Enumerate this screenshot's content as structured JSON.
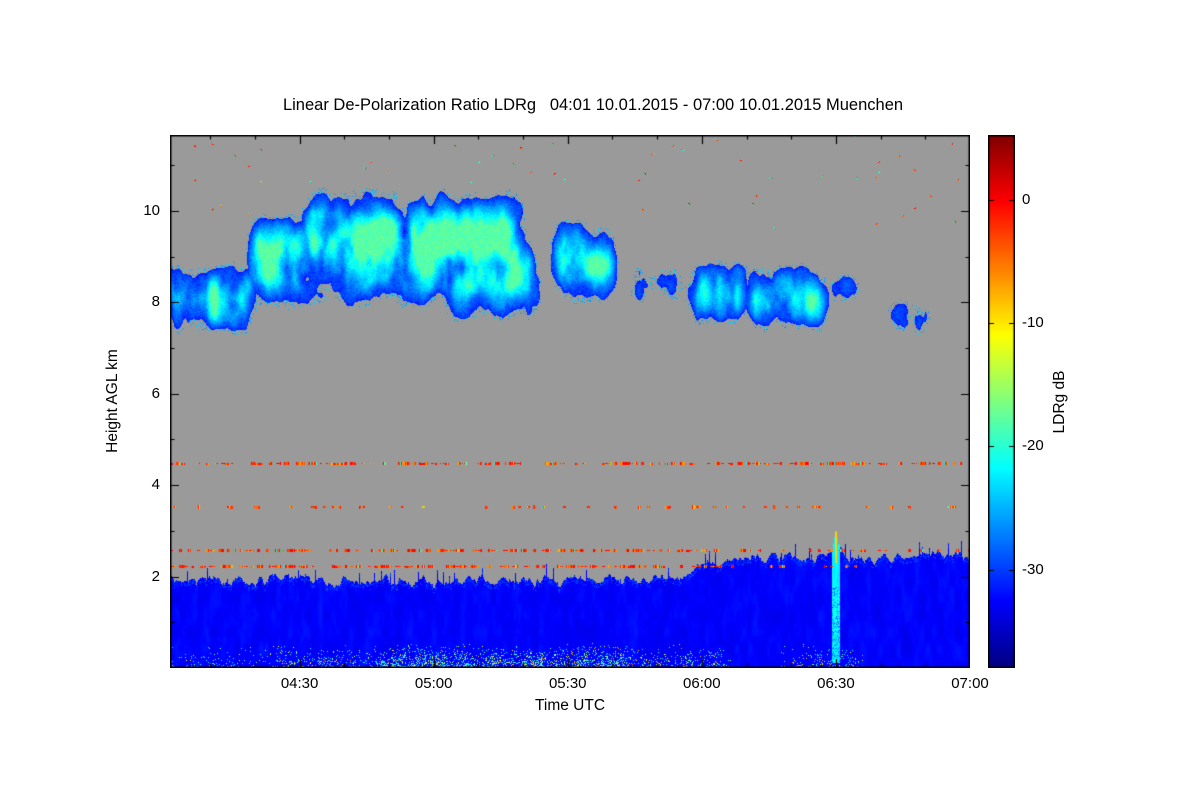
{
  "page": {
    "background": "#ffffff"
  },
  "chart_data": {
    "type": "heatmap",
    "title": "Linear De-Polarization Ratio LDRg   04:01 10.01.2015 - 07:00 10.01.2015 Muenchen",
    "xlabel": "Time UTC",
    "ylabel": "Height AGL km",
    "x_axis": {
      "start_label": "04:01",
      "end_label": "07:00",
      "range_minutes": [
        241,
        420
      ],
      "tick_labels": [
        "04:30",
        "05:00",
        "05:30",
        "06:00",
        "06:30",
        "07:00"
      ],
      "tick_minutes": [
        270,
        300,
        330,
        360,
        390,
        420
      ],
      "minor_tick_step_minutes": 10
    },
    "y_axis": {
      "range_km": [
        0,
        11.66
      ],
      "tick_labels": [
        "2",
        "4",
        "6",
        "8",
        "10"
      ],
      "tick_values": [
        2,
        4,
        6,
        8,
        10
      ],
      "minor_tick_step_km": 1
    },
    "colorbar": {
      "label": "LDRg dB",
      "tick_labels": [
        "0",
        "-10",
        "-20",
        "-30"
      ],
      "tick_values": [
        0,
        -10,
        -20,
        -30
      ],
      "range_db": [
        -38,
        5.3
      ],
      "colormap": "jet"
    },
    "no_data_color": "#9a9a9a",
    "features": {
      "cirrus_cloud": {
        "db_range": [
          -31,
          -18
        ],
        "segments": [
          {
            "t0": 234,
            "t1": 263,
            "strength": 0.85,
            "center_km": 8.1,
            "half_width_km": 0.8
          },
          {
            "t0": 256,
            "t1": 292,
            "strength": 0.9,
            "center_km": 8.9,
            "half_width_km": 1.0
          },
          {
            "t0": 268,
            "t1": 323,
            "strength": 1.05,
            "center_km": 9.2,
            "half_width_km": 1.2
          },
          {
            "t0": 298,
            "t1": 326,
            "strength": 0.95,
            "center_km": 8.6,
            "half_width_km": 0.9
          },
          {
            "t0": 324,
            "t1": 343,
            "strength": 0.9,
            "center_km": 8.9,
            "half_width_km": 0.9
          },
          {
            "t0": 341,
            "t1": 359,
            "strength": 0.55,
            "center_km": 8.4,
            "half_width_km": 0.55
          },
          {
            "t0": 354,
            "t1": 373,
            "strength": 0.8,
            "center_km": 8.2,
            "half_width_km": 0.75
          },
          {
            "t0": 367,
            "t1": 391,
            "strength": 0.8,
            "center_km": 8.1,
            "half_width_km": 0.75
          },
          {
            "t0": 385,
            "t1": 399,
            "strength": 0.5,
            "center_km": 8.3,
            "half_width_km": 0.5
          },
          {
            "t0": 399,
            "t1": 415,
            "strength": 0.6,
            "center_km": 7.7,
            "half_width_km": 0.55
          }
        ]
      },
      "boundary_layer": {
        "db_base": -33.8,
        "top_km_early": 1.92,
        "top_km_late": 2.37,
        "rise_start_minute": 350,
        "rise_duration_minutes": 18,
        "surface_speckle_db_range": [
          -23,
          -5
        ],
        "speckle_windows": [
          {
            "t0": 241,
            "t1": 262,
            "strength": 0.25
          },
          {
            "t0": 262,
            "t1": 288,
            "strength": 0.55
          },
          {
            "t0": 285,
            "t1": 345,
            "strength": 1.0
          },
          {
            "t0": 345,
            "t1": 366,
            "strength": 0.5
          },
          {
            "t0": 380,
            "t1": 394,
            "strength": 0.6
          }
        ]
      },
      "event_0630": {
        "minute": 390,
        "top_km": 3.05,
        "streak_db": -22,
        "line_db": -9,
        "line_h_range_km": [
          2.3,
          3.0
        ]
      },
      "artifact_lines": [
        {
          "h_km": 4.47,
          "density": 0.6,
          "t0": 241,
          "t1": 420,
          "db_min": -10,
          "db_max": 0,
          "fade_after": 420,
          "fade_factor": 1
        },
        {
          "h_km": 3.52,
          "density": 0.22,
          "t0": 241,
          "t1": 420,
          "db_min": -11,
          "db_max": -1,
          "fade_after": 420,
          "fade_factor": 1
        },
        {
          "h_km": 2.57,
          "density": 0.55,
          "t0": 241,
          "t1": 420,
          "db_min": -9,
          "db_max": 0,
          "fade_after": 365,
          "fade_factor": 0.5
        },
        {
          "h_km": 2.22,
          "density": 0.6,
          "t0": 241,
          "t1": 404,
          "db_min": -9,
          "db_max": 0,
          "fade_after": 365,
          "fade_factor": 0.3
        }
      ],
      "high_altitude_specks": {
        "min_km": 9.6,
        "probability": 0.0008,
        "db_hot": [
          -6,
          0
        ],
        "db_cold": -20
      }
    }
  }
}
